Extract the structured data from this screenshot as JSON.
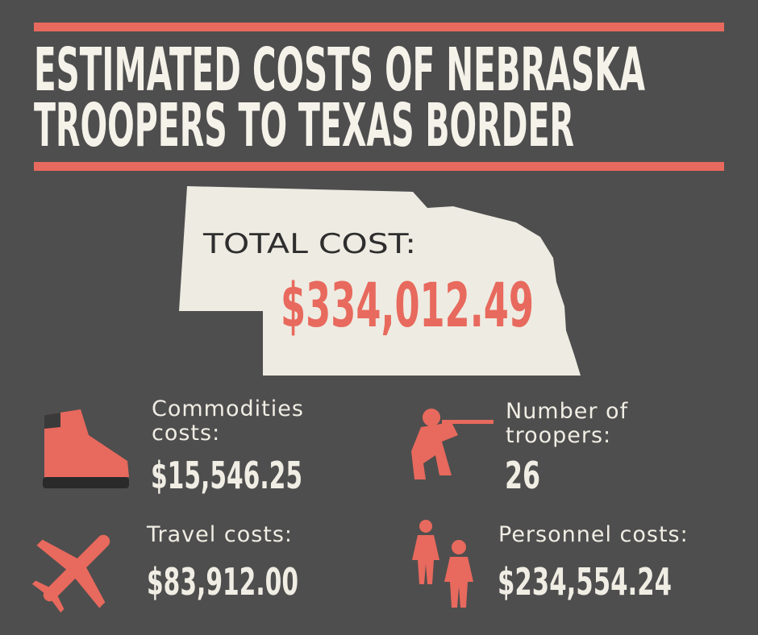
{
  "header": {
    "title_lines": [
      "ESTIMATED COSTS OF NEBRASKA",
      "TROOPERS TO TEXAS BORDER"
    ]
  },
  "total": {
    "label": "TOTAL COST:",
    "value": "$334,012.49"
  },
  "items": [
    {
      "label_lines": [
        "Commodities",
        "costs:"
      ],
      "value": "$15,546.25"
    },
    {
      "label_lines": [
        "Number of",
        "troopers:"
      ],
      "value": "26"
    },
    {
      "label_lines": [
        "Travel costs:"
      ],
      "value": "$83,912.00"
    },
    {
      "label_lines": [
        "Personnel costs:"
      ],
      "value": "$234,554.24"
    }
  ]
}
